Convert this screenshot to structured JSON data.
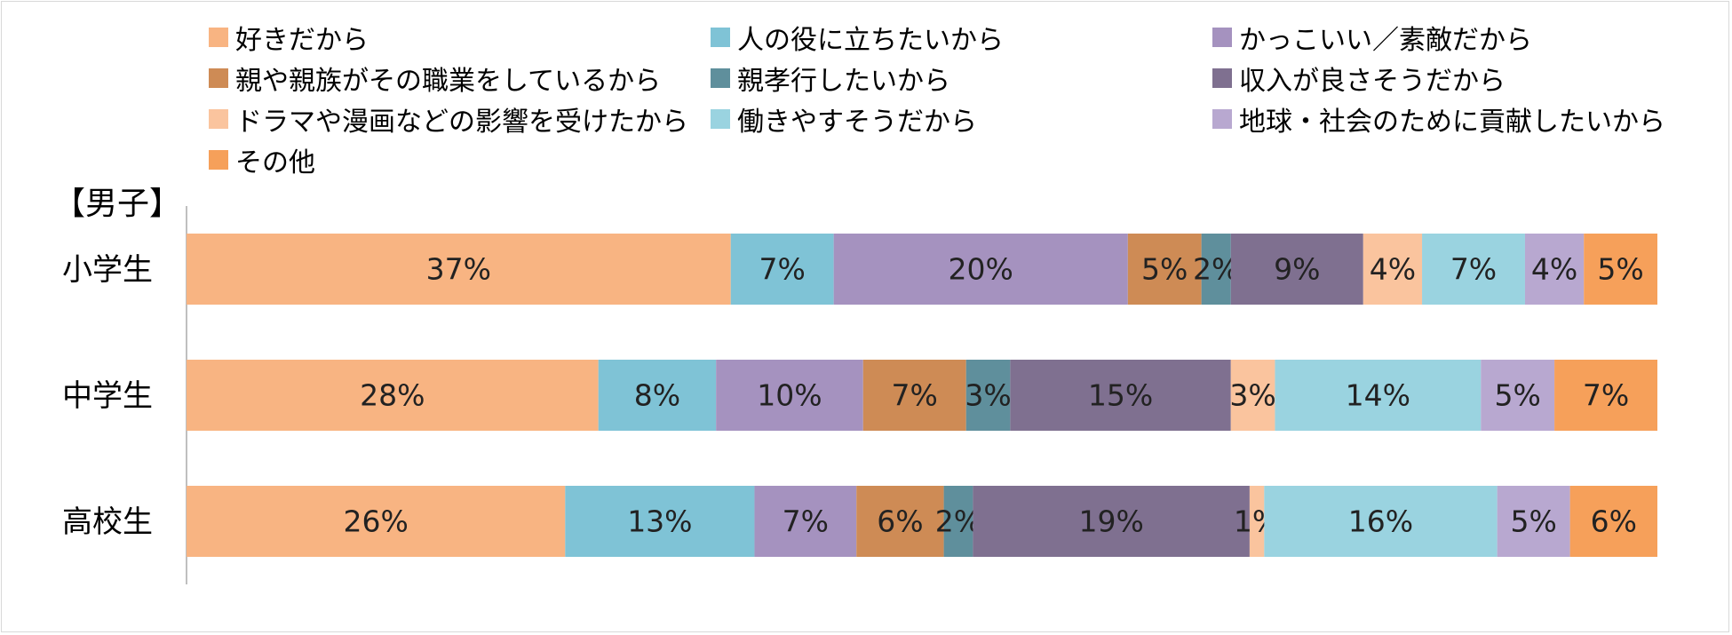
{
  "chart_data": {
    "type": "bar",
    "orientation": "horizontal",
    "stacked": "percent",
    "title": "【男子】",
    "categories": [
      "小学生",
      "中学生",
      "高校生"
    ],
    "legend_position": "top",
    "grid": false,
    "xlim": [
      0,
      100
    ],
    "series": [
      {
        "name": "好きだから",
        "color": "#F8B482",
        "values": [
          37,
          28,
          26
        ]
      },
      {
        "name": "人の役に立ちたいから",
        "color": "#7FC3D6",
        "values": [
          7,
          8,
          13
        ]
      },
      {
        "name": "かっこいい／素敵だから",
        "color": "#A592BF",
        "values": [
          20,
          10,
          7
        ]
      },
      {
        "name": "親や親族がその職業をしているから",
        "color": "#CE8B55",
        "values": [
          5,
          7,
          6
        ]
      },
      {
        "name": "親孝行したいから",
        "color": "#5F8F9C",
        "values": [
          2,
          3,
          2
        ]
      },
      {
        "name": "収入が良さそうだから",
        "color": "#7F7090",
        "values": [
          9,
          15,
          19
        ]
      },
      {
        "name": "ドラマや漫画などの影響を受けたから",
        "color": "#FAC49E",
        "values": [
          4,
          3,
          1
        ]
      },
      {
        "name": "働きやすそうだから",
        "color": "#9AD3E0",
        "values": [
          7,
          14,
          16
        ]
      },
      {
        "name": "地球・社会のために貢献したいから",
        "color": "#B8A8D0",
        "values": [
          4,
          5,
          5
        ]
      },
      {
        "name": "その他",
        "color": "#F6A05A",
        "values": [
          5,
          7,
          6
        ]
      }
    ]
  }
}
